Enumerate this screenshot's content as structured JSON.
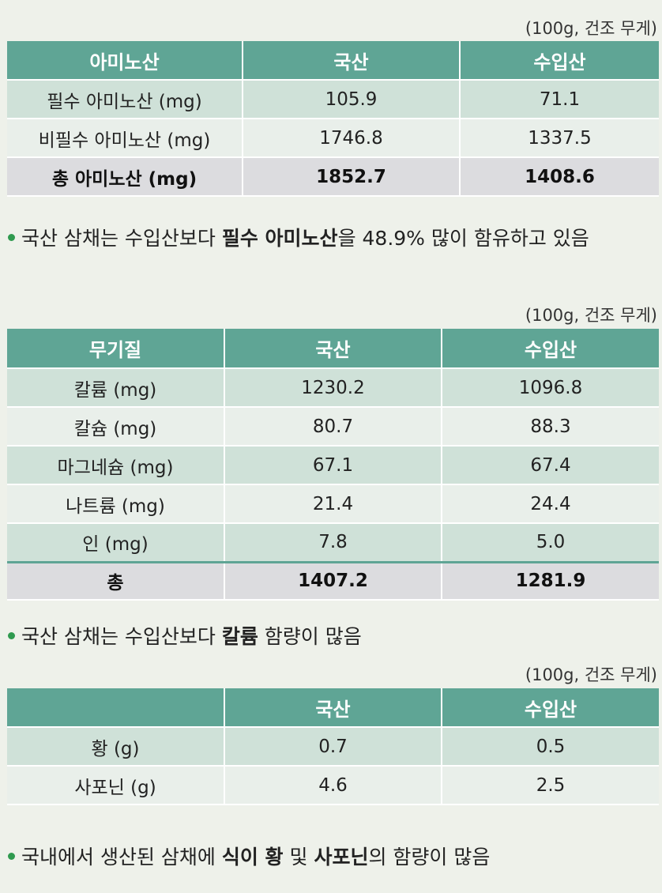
{
  "unit_label": "(100g, 건조 무게)",
  "amino": {
    "headers": [
      "아미노산",
      "국산",
      "수입산"
    ],
    "rows": [
      {
        "label": "필수 아미노산 (mg)",
        "domestic": "105.9",
        "imported": "71.1"
      },
      {
        "label": "비필수 아미노산 (mg)",
        "domestic": "1746.8",
        "imported": "1337.5"
      }
    ],
    "total": {
      "label": "총 아미노산 (mg)",
      "domestic": "1852.7",
      "imported": "1408.6"
    },
    "note": {
      "pre": "국산 삼채는 수입산보다 ",
      "bold": "필수 아미노산",
      "post": "을 48.9% 많이 함유하고 있음"
    }
  },
  "mineral": {
    "headers": [
      "무기질",
      "국산",
      "수입산"
    ],
    "rows": [
      {
        "label": "칼륨 (mg)",
        "domestic": "1230.2",
        "imported": "1096.8"
      },
      {
        "label": "칼슘 (mg)",
        "domestic": "80.7",
        "imported": "88.3"
      },
      {
        "label": "마그네슘 (mg)",
        "domestic": "67.1",
        "imported": "67.4"
      },
      {
        "label": "나트륨 (mg)",
        "domestic": "21.4",
        "imported": "24.4"
      },
      {
        "label": "인 (mg)",
        "domestic": "7.8",
        "imported": "5.0"
      }
    ],
    "total": {
      "label": "총",
      "domestic": "1407.2",
      "imported": "1281.9"
    },
    "note": {
      "pre": "국산 삼채는 수입산보다 ",
      "bold": "칼륨",
      "post": " 함량이 많음"
    }
  },
  "sulfur": {
    "headers": [
      "",
      "국산",
      "수입산"
    ],
    "rows": [
      {
        "label": "황 (g)",
        "domestic": "0.7",
        "imported": "0.5"
      },
      {
        "label": "사포닌 (g)",
        "domestic": "4.6",
        "imported": "2.5"
      }
    ],
    "note": {
      "pre": "국내에서 생산된 삼채에 ",
      "bold1": "식이 황",
      "mid": " 및 ",
      "bold2": "사포닌",
      "post": "의 함량이 많음"
    }
  }
}
